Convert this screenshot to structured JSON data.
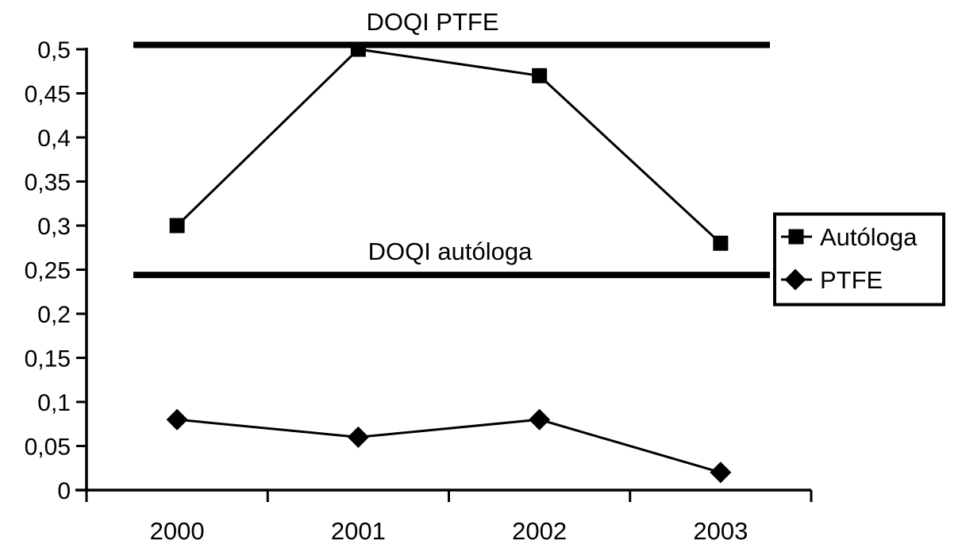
{
  "figure": {
    "background_color": "#ffffff",
    "ink_color": "#000000"
  },
  "chart_data": {
    "type": "line",
    "categories": [
      "2000",
      "2001",
      "2002",
      "2003"
    ],
    "series": [
      {
        "name": "Autóloga",
        "marker": "square",
        "values": [
          0.3,
          0.5,
          0.47,
          0.28
        ]
      },
      {
        "name": "PTFE",
        "marker": "diamond",
        "values": [
          0.08,
          0.06,
          0.08,
          0.02
        ]
      }
    ],
    "ref_lines": [
      {
        "label": "DOQI PTFE",
        "value": 0.505
      },
      {
        "label": "DOQI autóloga",
        "value": 0.244
      }
    ],
    "ylim": [
      0,
      0.5
    ],
    "y_tick_step": 0.05,
    "y_tick_labels": [
      "0",
      "0,05",
      "0,1",
      "0,15",
      "0,2",
      "0,25",
      "0,3",
      "0,35",
      "0,4",
      "0,45",
      "0,5"
    ],
    "decimal_separator": ",",
    "grid": false,
    "legend_position": "right-middle",
    "line_color": "#000000",
    "marker_color": "#000000"
  }
}
